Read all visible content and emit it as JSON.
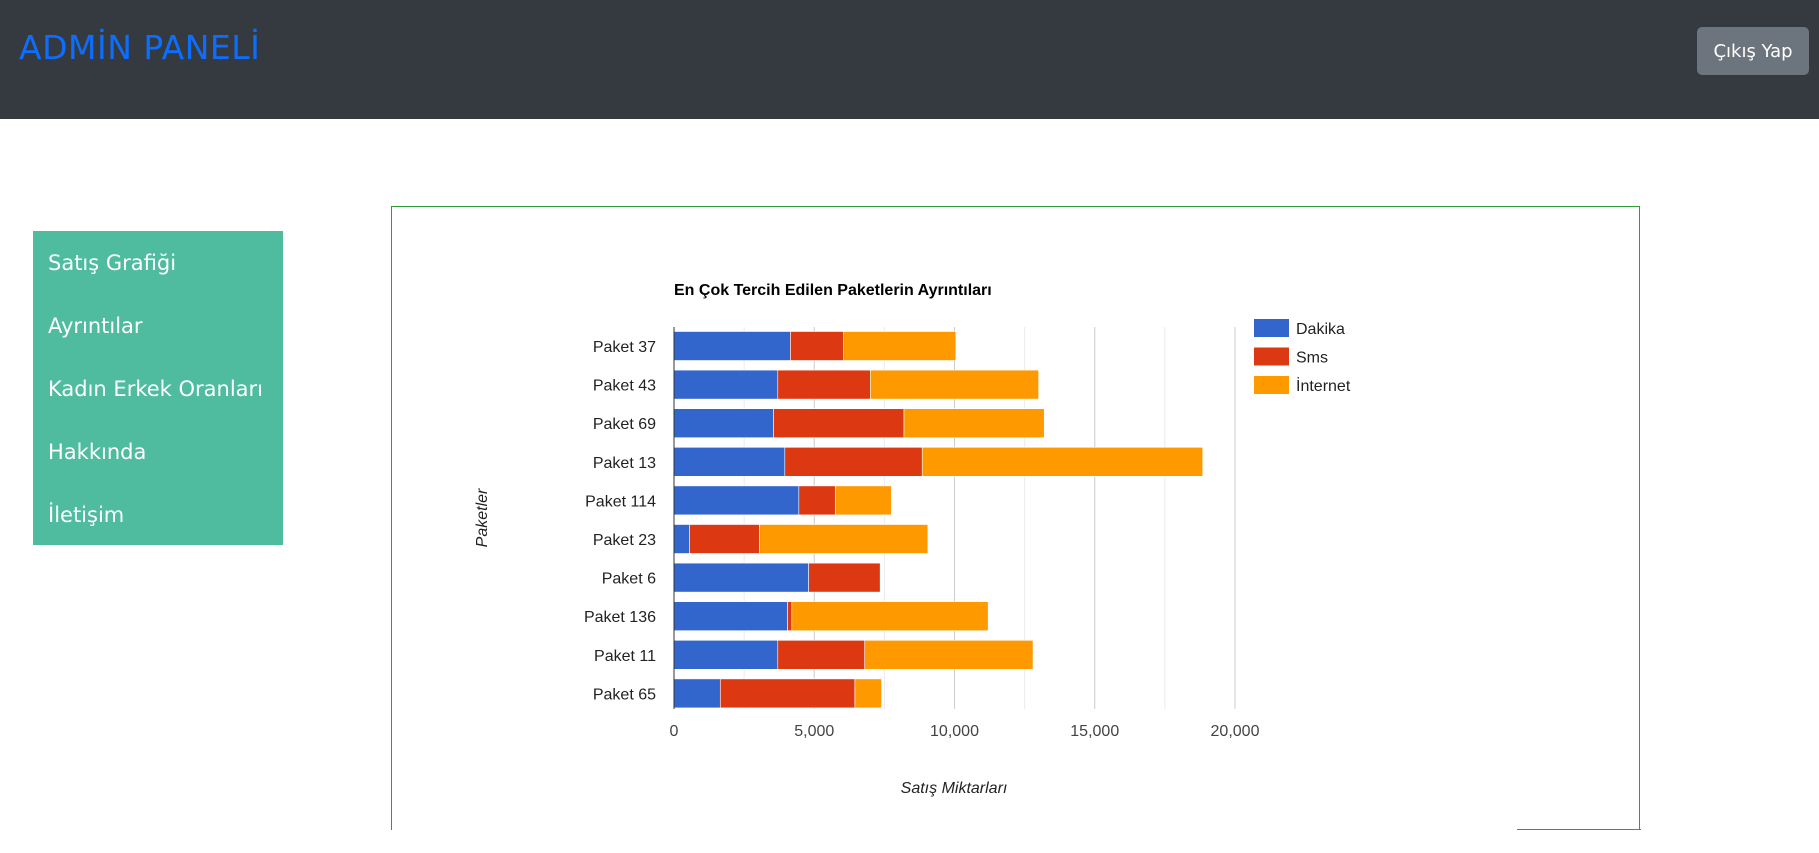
{
  "header": {
    "brand": "ADMİN PANELİ",
    "logout_label": "Çıkış Yap"
  },
  "sidebar": {
    "items": [
      {
        "label": "Satış Grafiği"
      },
      {
        "label": "Ayrıntılar"
      },
      {
        "label": "Kadın Erkek Oranları"
      },
      {
        "label": "Hakkında"
      },
      {
        "label": "İletişim"
      }
    ]
  },
  "colors": {
    "dakika": "#3366cc",
    "sms": "#dc3912",
    "internet": "#ff9900",
    "sidebar": "#4fbb9f",
    "topbar": "#343a40",
    "brand": "#0d6efd"
  },
  "chart_data": {
    "type": "bar",
    "orientation": "horizontal",
    "stacked": true,
    "title": "En Çok Tercih Edilen Paketlerin Ayrıntıları",
    "xlabel": "Satış Miktarları",
    "ylabel": "Paketler",
    "xlim": [
      0,
      20000
    ],
    "xticks": [
      "0",
      "5,000",
      "10,000",
      "15,000",
      "20,000"
    ],
    "legend_position": "right",
    "grid": true,
    "categories": [
      "Paket 37",
      "Paket 43",
      "Paket 69",
      "Paket 13",
      "Paket 114",
      "Paket 23",
      "Paket 6",
      "Paket 136",
      "Paket 11",
      "Paket 65"
    ],
    "series": [
      {
        "name": "Dakika",
        "values": [
          4150,
          3700,
          3550,
          3950,
          4450,
          550,
          4800,
          4050,
          3700,
          1650
        ]
      },
      {
        "name": "Sms",
        "values": [
          1900,
          3300,
          4650,
          4900,
          1300,
          2500,
          2550,
          150,
          3100,
          4800
        ]
      },
      {
        "name": "İnternet",
        "values": [
          4000,
          6000,
          5000,
          10000,
          2000,
          6000,
          0,
          7000,
          6000,
          950
        ]
      }
    ]
  }
}
